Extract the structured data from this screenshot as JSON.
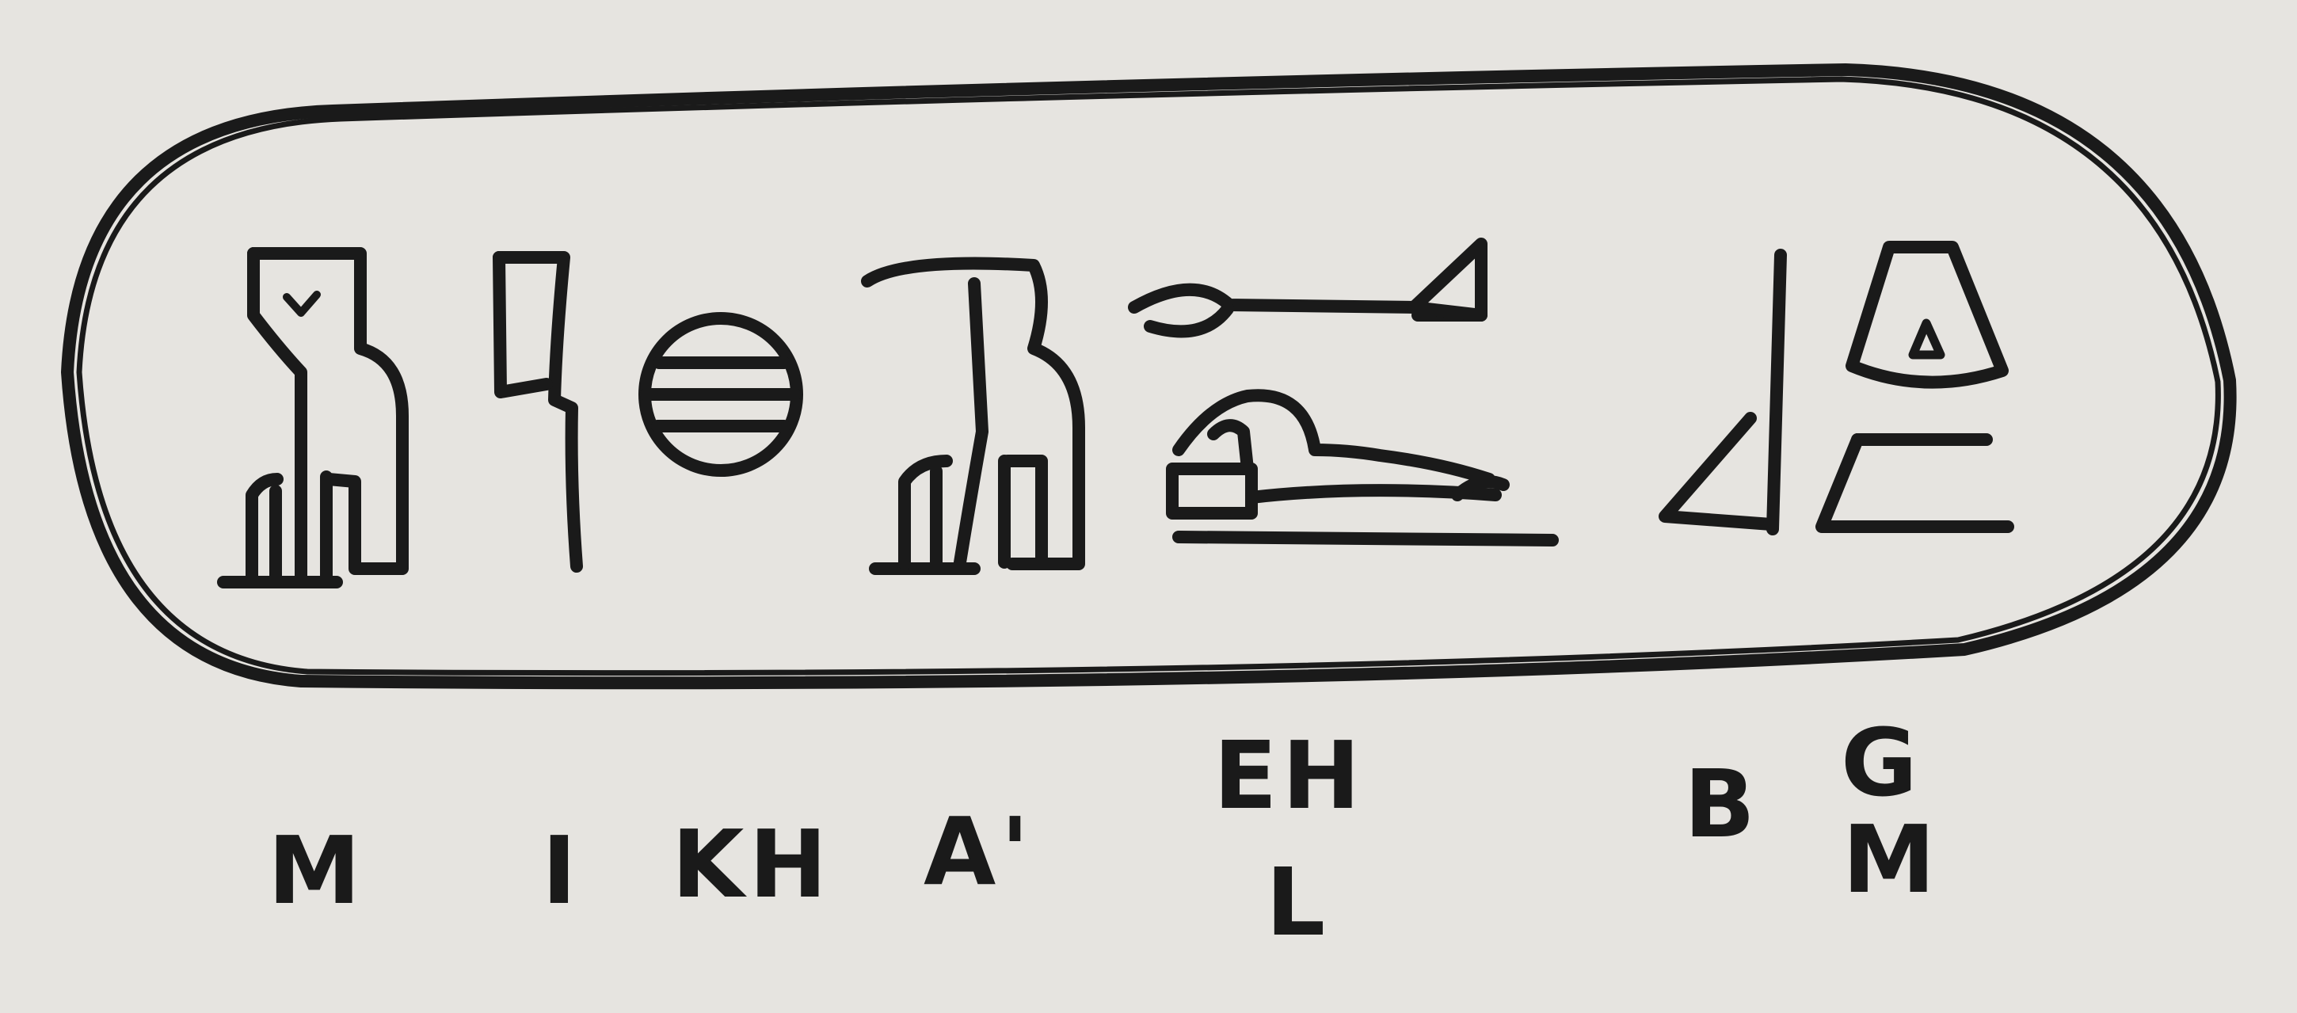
{
  "phonetic_labels": {
    "m": "M",
    "i": "I",
    "kh": "KH",
    "a": "A'",
    "eh": "EH",
    "l": "L",
    "b": "B",
    "g": "G",
    "m2": "M"
  },
  "colors": {
    "paper": "#e6e4e0",
    "ink": "#1a1a1a"
  }
}
